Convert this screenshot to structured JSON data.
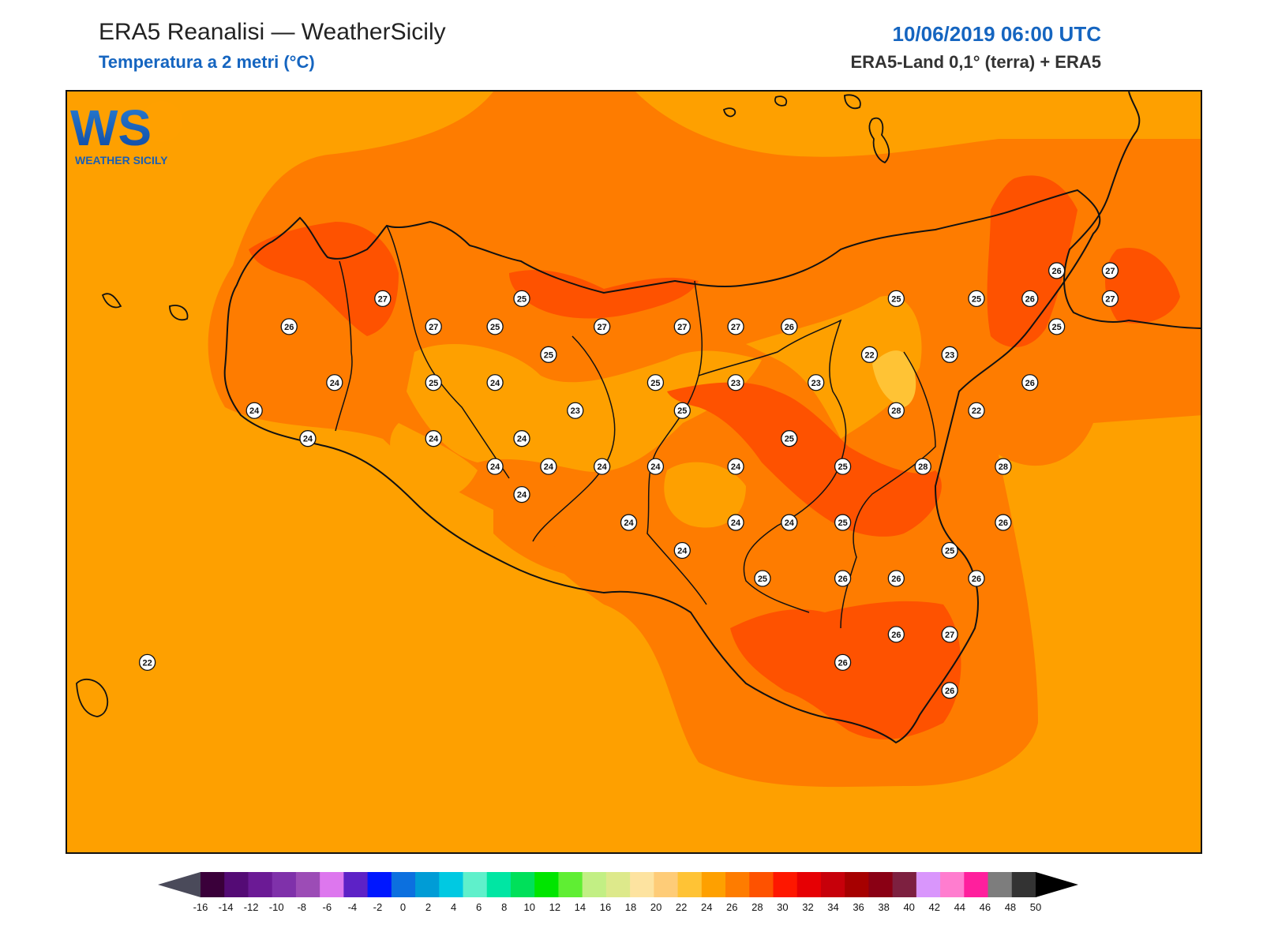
{
  "header": {
    "title": "ERA5 Reanalisi — WeatherSicily",
    "subtitle": "Temperatura a 2 metri (°C)",
    "datetime": "10/06/2019 06:00 UTC",
    "source": "ERA5-Land 0,1° (terra) + ERA5"
  },
  "logo": {
    "letters": "WS",
    "caption": "WEATHER SICILY"
  },
  "colors": {
    "band_22_24": "#fea000",
    "band_24_26": "#fe7c00",
    "band_26_28": "#fe5200",
    "band_20_22": "#ffc335",
    "coastline": "#111111"
  },
  "stations": [
    {
      "value": "27",
      "lon": 12.88,
      "lat": 38.14
    },
    {
      "value": "26",
      "lon": 12.53,
      "lat": 38.04
    },
    {
      "value": "27",
      "lon": 13.07,
      "lat": 38.04
    },
    {
      "value": "25",
      "lon": 13.3,
      "lat": 38.04
    },
    {
      "value": "25",
      "lon": 13.4,
      "lat": 38.14
    },
    {
      "value": "25",
      "lon": 13.5,
      "lat": 37.94
    },
    {
      "value": "24",
      "lon": 12.7,
      "lat": 37.84
    },
    {
      "value": "25",
      "lon": 13.07,
      "lat": 37.84
    },
    {
      "value": "24",
      "lon": 13.3,
      "lat": 37.84
    },
    {
      "value": "24",
      "lon": 12.4,
      "lat": 37.74
    },
    {
      "value": "24",
      "lon": 12.6,
      "lat": 37.64
    },
    {
      "value": "24",
      "lon": 13.07,
      "lat": 37.64
    },
    {
      "value": "24",
      "lon": 13.4,
      "lat": 37.64
    },
    {
      "value": "23",
      "lon": 13.6,
      "lat": 37.74
    },
    {
      "value": "27",
      "lon": 13.7,
      "lat": 38.04
    },
    {
      "value": "27",
      "lon": 14.0,
      "lat": 38.04
    },
    {
      "value": "27",
      "lon": 14.2,
      "lat": 38.04
    },
    {
      "value": "26",
      "lon": 14.4,
      "lat": 38.04
    },
    {
      "value": "25",
      "lon": 13.9,
      "lat": 37.84
    },
    {
      "value": "25",
      "lon": 14.0,
      "lat": 37.74
    },
    {
      "value": "23",
      "lon": 14.2,
      "lat": 37.84
    },
    {
      "value": "23",
      "lon": 14.5,
      "lat": 37.84
    },
    {
      "value": "22",
      "lon": 14.7,
      "lat": 37.94
    },
    {
      "value": "23",
      "lon": 15.0,
      "lat": 37.94
    },
    {
      "value": "25",
      "lon": 14.8,
      "lat": 38.14
    },
    {
      "value": "25",
      "lon": 15.1,
      "lat": 38.14
    },
    {
      "value": "26",
      "lon": 15.3,
      "lat": 38.14
    },
    {
      "value": "26",
      "lon": 15.4,
      "lat": 38.24
    },
    {
      "value": "27",
      "lon": 15.6,
      "lat": 38.24
    },
    {
      "value": "27",
      "lon": 15.6,
      "lat": 38.14
    },
    {
      "value": "25",
      "lon": 15.4,
      "lat": 38.04
    },
    {
      "value": "26",
      "lon": 15.3,
      "lat": 37.84
    },
    {
      "value": "22",
      "lon": 15.1,
      "lat": 37.74
    },
    {
      "value": "28",
      "lon": 14.8,
      "lat": 37.74
    },
    {
      "value": "25",
      "lon": 14.4,
      "lat": 37.64
    },
    {
      "value": "25",
      "lon": 14.6,
      "lat": 37.54
    },
    {
      "value": "28",
      "lon": 14.9,
      "lat": 37.54
    },
    {
      "value": "28",
      "lon": 15.2,
      "lat": 37.54
    },
    {
      "value": "24",
      "lon": 13.7,
      "lat": 37.54
    },
    {
      "value": "24",
      "lon": 13.9,
      "lat": 37.54
    },
    {
      "value": "24",
      "lon": 14.2,
      "lat": 37.54
    },
    {
      "value": "24",
      "lon": 13.3,
      "lat": 37.54
    },
    {
      "value": "24",
      "lon": 13.5,
      "lat": 37.54
    },
    {
      "value": "24",
      "lon": 13.4,
      "lat": 37.44
    },
    {
      "value": "24",
      "lon": 13.8,
      "lat": 37.34
    },
    {
      "value": "24",
      "lon": 14.0,
      "lat": 37.24
    },
    {
      "value": "24",
      "lon": 14.2,
      "lat": 37.34
    },
    {
      "value": "24",
      "lon": 14.4,
      "lat": 37.34
    },
    {
      "value": "25",
      "lon": 14.6,
      "lat": 37.34
    },
    {
      "value": "26",
      "lon": 15.2,
      "lat": 37.34
    },
    {
      "value": "25",
      "lon": 15.0,
      "lat": 37.24
    },
    {
      "value": "25",
      "lon": 14.3,
      "lat": 37.14
    },
    {
      "value": "26",
      "lon": 14.6,
      "lat": 37.14
    },
    {
      "value": "26",
      "lon": 14.8,
      "lat": 37.14
    },
    {
      "value": "26",
      "lon": 15.1,
      "lat": 37.14
    },
    {
      "value": "26",
      "lon": 14.8,
      "lat": 36.94
    },
    {
      "value": "27",
      "lon": 15.0,
      "lat": 36.94
    },
    {
      "value": "26",
      "lon": 14.6,
      "lat": 36.84
    },
    {
      "value": "26",
      "lon": 15.0,
      "lat": 36.74
    },
    {
      "value": "22",
      "lon": 12.0,
      "lat": 36.84
    }
  ],
  "colorbar": {
    "ticks": [
      "-16",
      "-14",
      "-12",
      "-10",
      "-8",
      "-6",
      "-4",
      "-2",
      "0",
      "2",
      "4",
      "6",
      "8",
      "10",
      "12",
      "14",
      "16",
      "18",
      "20",
      "22",
      "24",
      "26",
      "28",
      "30",
      "32",
      "34",
      "36",
      "38",
      "40",
      "42",
      "44",
      "46",
      "48",
      "50"
    ],
    "colors": [
      "#3a003a",
      "#540b75",
      "#6b1a95",
      "#7f31aa",
      "#9c4cb6",
      "#dd77ee",
      "#5d22c6",
      "#0017ff",
      "#0c70df",
      "#009cd6",
      "#00c9e2",
      "#5ff0cb",
      "#00e6a3",
      "#00e05a",
      "#00e500",
      "#5fee33",
      "#c2ef84",
      "#dde98b",
      "#fde3a0",
      "#fecc78",
      "#ffc335",
      "#fea000",
      "#fe7c00",
      "#fe5200",
      "#fe1700",
      "#e60004",
      "#c7000a",
      "#a60000",
      "#8a0014",
      "#7d2040",
      "#d996fc",
      "#ff7dcf",
      "#ff1f9d",
      "#7d7d7d",
      "#333333"
    ],
    "min_arrow_color": "#4a4a5a",
    "max_arrow_color": "#000000"
  }
}
